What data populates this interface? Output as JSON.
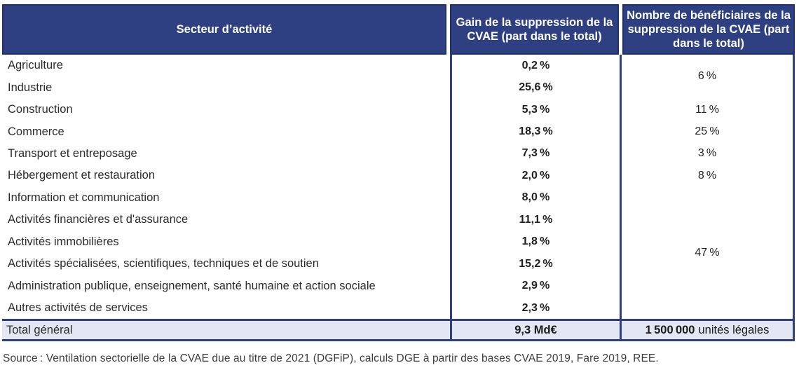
{
  "colors": {
    "header_bg": "#2e4082",
    "header_border": "#22306b",
    "grid_line": "#2e4082",
    "total_bg": "#e3e7f3",
    "body_text": "#2b2b2b",
    "header_text": "#ffffff"
  },
  "header": {
    "col1": "Secteur d’activité",
    "col2": "Gain de la suppression de la CVAE (part dans le total)",
    "col3": "Nombre de bénéficiaires de la suppression de la CVAE (part dans le total)"
  },
  "rows": [
    {
      "sector": "Agriculture",
      "gain": "0,2 %"
    },
    {
      "sector": "Industrie",
      "gain": "25,6 %"
    },
    {
      "sector": "Construction",
      "gain": "5,3 %"
    },
    {
      "sector": "Commerce",
      "gain": "18,3 %"
    },
    {
      "sector": "Transport et entreposage",
      "gain": "7,3 %"
    },
    {
      "sector": "Hébergement et restauration",
      "gain": "2,0 %"
    },
    {
      "sector": "Information et communication",
      "gain": "8,0 %"
    },
    {
      "sector": "Activités financières et d'assurance",
      "gain": "11,1 %"
    },
    {
      "sector": "Activités immobilières",
      "gain": "1,8 %"
    },
    {
      "sector": "Activités spécialisées, scientifiques, techniques et de soutien",
      "gain": "15,2 %"
    },
    {
      "sector": "Administration publique, enseignement, santé humaine et action sociale",
      "gain": "2,9 %"
    },
    {
      "sector": "Autres activités de services",
      "gain": "2,3 %"
    }
  ],
  "beneficiaries": [
    {
      "value": "6 %",
      "rowspan": 2
    },
    {
      "value": "11 %",
      "rowspan": 1
    },
    {
      "value": "25 %",
      "rowspan": 1
    },
    {
      "value": "3 %",
      "rowspan": 1
    },
    {
      "value": "8 %",
      "rowspan": 1
    },
    {
      "value": "47 %",
      "rowspan": 6
    }
  ],
  "total": {
    "label": "Total général",
    "gain": "9,3 Md€",
    "beneficiaries_value": "1 500 000",
    "beneficiaries_unit": "unités légales"
  },
  "source": "Source : Ventilation sectorielle de la CVAE due au titre de 2021 (DGFiP), calculs DGE à partir des bases CVAE 2019, Fare 2019, REE."
}
